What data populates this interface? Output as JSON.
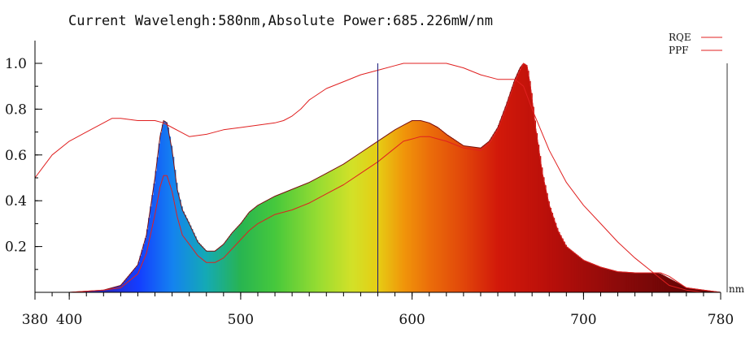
{
  "chart_data": {
    "type": "area",
    "title": "Current Wavelengh:580nm,Absolute Power:685.226mW/nm",
    "xlabel": "",
    "ylabel": "",
    "x_unit": "nm",
    "xlim": [
      380,
      780
    ],
    "ylim": [
      0,
      1.0
    ],
    "x_ticks": [
      {
        "value": 380,
        "label": "380"
      },
      {
        "value": 400,
        "label": "400"
      },
      {
        "value": 500,
        "label": "500"
      },
      {
        "value": 600,
        "label": "600"
      },
      {
        "value": 700,
        "label": "700"
      },
      {
        "value": 780,
        "label": "780"
      }
    ],
    "y_ticks": [
      {
        "value": 0.2,
        "label": "0.2"
      },
      {
        "value": 0.4,
        "label": "0.4"
      },
      {
        "value": 0.6,
        "label": "0.6"
      },
      {
        "value": 0.8,
        "label": "0.8"
      },
      {
        "value": 1.0,
        "label": "1.0"
      }
    ],
    "current_wavelength": 580,
    "legend": {
      "position": "top-right",
      "entries": [
        "RQE",
        "PPF"
      ]
    },
    "colors": {
      "rqe": "#e02020",
      "ppf": "#e02020",
      "marker": "#1a1a7a",
      "axis": "#000000"
    },
    "series": [
      {
        "name": "Spectrum",
        "x": [
          380,
          400,
          420,
          430,
          440,
          445,
          450,
          453,
          455,
          457,
          460,
          463,
          466,
          470,
          475,
          480,
          485,
          490,
          495,
          500,
          505,
          510,
          520,
          530,
          540,
          550,
          560,
          570,
          580,
          590,
          595,
          600,
          605,
          610,
          615,
          620,
          630,
          640,
          645,
          650,
          655,
          660,
          663,
          665,
          667,
          669,
          672,
          676,
          680,
          685,
          690,
          700,
          710,
          720,
          730,
          740,
          745,
          750,
          760,
          770,
          780
        ],
        "values": [
          0.0,
          0.0,
          0.01,
          0.03,
          0.12,
          0.25,
          0.5,
          0.68,
          0.75,
          0.74,
          0.62,
          0.45,
          0.36,
          0.3,
          0.22,
          0.18,
          0.18,
          0.21,
          0.26,
          0.3,
          0.35,
          0.38,
          0.42,
          0.45,
          0.48,
          0.52,
          0.56,
          0.61,
          0.66,
          0.71,
          0.73,
          0.75,
          0.75,
          0.74,
          0.72,
          0.69,
          0.64,
          0.63,
          0.66,
          0.72,
          0.82,
          0.93,
          0.98,
          1.0,
          0.99,
          0.9,
          0.72,
          0.52,
          0.38,
          0.27,
          0.2,
          0.14,
          0.11,
          0.09,
          0.085,
          0.085,
          0.08,
          0.06,
          0.02,
          0.01,
          0.0
        ]
      },
      {
        "name": "PPF",
        "x": [
          380,
          400,
          420,
          430,
          440,
          445,
          450,
          453,
          455,
          457,
          460,
          463,
          466,
          470,
          475,
          480,
          485,
          490,
          495,
          500,
          505,
          510,
          520,
          530,
          540,
          550,
          560,
          570,
          580,
          590,
          595,
          600,
          605,
          610,
          615,
          620,
          630,
          640,
          645,
          650,
          655,
          660,
          663,
          665,
          667,
          669,
          672,
          676,
          680,
          685,
          690,
          700,
          710,
          720,
          730,
          740,
          745,
          750,
          760,
          770,
          780
        ],
        "values": [
          0.0,
          0.0,
          0.01,
          0.02,
          0.08,
          0.17,
          0.34,
          0.46,
          0.51,
          0.51,
          0.44,
          0.33,
          0.25,
          0.21,
          0.16,
          0.13,
          0.13,
          0.15,
          0.19,
          0.23,
          0.27,
          0.3,
          0.34,
          0.36,
          0.39,
          0.43,
          0.47,
          0.52,
          0.57,
          0.63,
          0.66,
          0.67,
          0.68,
          0.68,
          0.67,
          0.66,
          0.63,
          0.62,
          0.65,
          0.71,
          0.81,
          0.92,
          0.97,
          1.0,
          0.99,
          0.9,
          0.72,
          0.52,
          0.38,
          0.27,
          0.2,
          0.14,
          0.11,
          0.09,
          0.085,
          0.085,
          0.085,
          0.07,
          0.02,
          0.01,
          0.0
        ]
      },
      {
        "name": "RQE",
        "x": [
          380,
          385,
          390,
          400,
          410,
          420,
          425,
          430,
          440,
          445,
          450,
          455,
          460,
          465,
          470,
          480,
          490,
          500,
          510,
          520,
          525,
          530,
          535,
          540,
          550,
          560,
          570,
          580,
          590,
          595,
          600,
          610,
          620,
          630,
          640,
          650,
          660,
          665,
          670,
          680,
          690,
          700,
          710,
          720,
          730,
          740,
          745,
          750,
          760,
          770,
          780
        ],
        "values": [
          0.5,
          0.55,
          0.6,
          0.66,
          0.7,
          0.74,
          0.76,
          0.76,
          0.75,
          0.75,
          0.75,
          0.74,
          0.72,
          0.7,
          0.68,
          0.69,
          0.71,
          0.72,
          0.73,
          0.74,
          0.75,
          0.77,
          0.8,
          0.84,
          0.89,
          0.92,
          0.95,
          0.97,
          0.99,
          1.0,
          1.0,
          1.0,
          1.0,
          0.98,
          0.95,
          0.93,
          0.93,
          0.9,
          0.8,
          0.62,
          0.48,
          0.38,
          0.3,
          0.22,
          0.15,
          0.09,
          0.06,
          0.03,
          0.01,
          0.0,
          0.0
        ]
      }
    ]
  }
}
